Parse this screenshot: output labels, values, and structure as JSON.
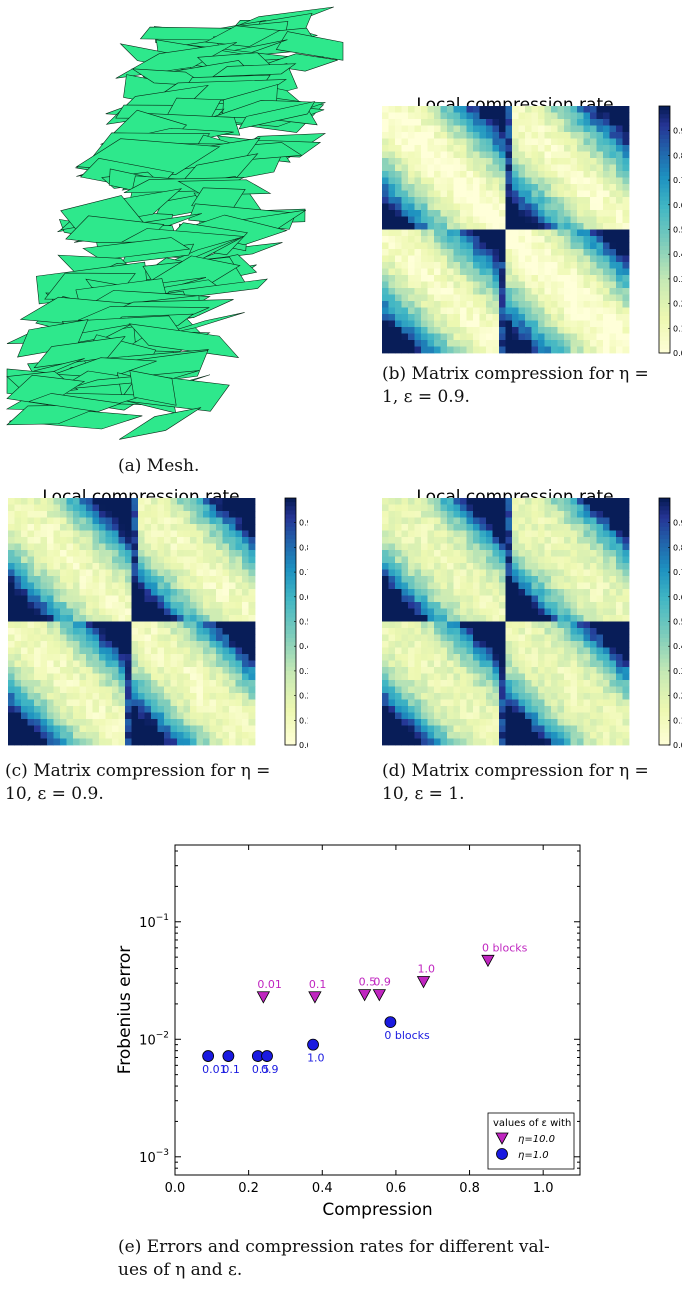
{
  "figure": {
    "a": {
      "caption": "(a) Mesh."
    },
    "b": {
      "title": "Local compression rate",
      "caption_line1": "(b) Matrix compression for η =",
      "caption_line2": "1, ε = 0.9."
    },
    "c": {
      "title": "Local compression rate",
      "caption_line1": "(c) Matrix compression for η =",
      "caption_line2": "10, ε = 0.9."
    },
    "d": {
      "title": "Local compression rate",
      "caption_line1": "(d) Matrix compression for η =",
      "caption_line2": "10, ε = 1."
    },
    "e": {
      "caption_line1": "(e) Errors and compression rates for different val-",
      "caption_line2": "ues of η and ε."
    }
  },
  "colorbar_ticks": [
    "0.0",
    "0.1",
    "0.2",
    "0.3",
    "0.4",
    "0.5",
    "0.6",
    "0.7",
    "0.8",
    "0.9"
  ],
  "colors": {
    "mesh_fill": "#2ee88c",
    "heat_low": "#ffffd9",
    "heat_high": "#081d58",
    "eta10": "#c026c0",
    "eta1": "#1a1ae0"
  },
  "chart_data": {
    "type": "scatter",
    "xlabel": "Compression",
    "ylabel": "Frobenius error",
    "xlim": [
      0.0,
      1.1
    ],
    "ylim": [
      0.0007,
      0.45
    ],
    "yscale": "log",
    "x_ticks": [
      "0.0",
      "0.2",
      "0.4",
      "0.6",
      "0.8",
      "1.0"
    ],
    "y_ticks": [
      {
        "base": "10",
        "exp": "−1",
        "value": 0.1
      },
      {
        "base": "10",
        "exp": "−2",
        "value": 0.01
      },
      {
        "base": "10",
        "exp": "−3",
        "value": 0.001
      }
    ],
    "legend": {
      "title": "values of ε with",
      "placement": "lower-right"
    },
    "series": [
      {
        "name": "η=10.0",
        "marker": "triangle-down",
        "color": "#c026c0",
        "points": [
          {
            "x": 0.24,
            "y": 0.023,
            "label": "0.01"
          },
          {
            "x": 0.38,
            "y": 0.023,
            "label": "0.1"
          },
          {
            "x": 0.515,
            "y": 0.024,
            "label": "0.5"
          },
          {
            "x": 0.555,
            "y": 0.024,
            "label": "0.9"
          },
          {
            "x": 0.675,
            "y": 0.031,
            "label": "1.0"
          },
          {
            "x": 0.85,
            "y": 0.047,
            "label": "0 blocks"
          }
        ]
      },
      {
        "name": "η=1.0",
        "marker": "circle",
        "color": "#1a1ae0",
        "points": [
          {
            "x": 0.09,
            "y": 0.0072,
            "label": "0.01"
          },
          {
            "x": 0.145,
            "y": 0.0072,
            "label": "0.1"
          },
          {
            "x": 0.225,
            "y": 0.0072,
            "label": "0.5"
          },
          {
            "x": 0.25,
            "y": 0.0072,
            "label": "0.9"
          },
          {
            "x": 0.375,
            "y": 0.009,
            "label": "1.0"
          },
          {
            "x": 0.585,
            "y": 0.014,
            "label": "0 blocks"
          }
        ]
      }
    ]
  }
}
